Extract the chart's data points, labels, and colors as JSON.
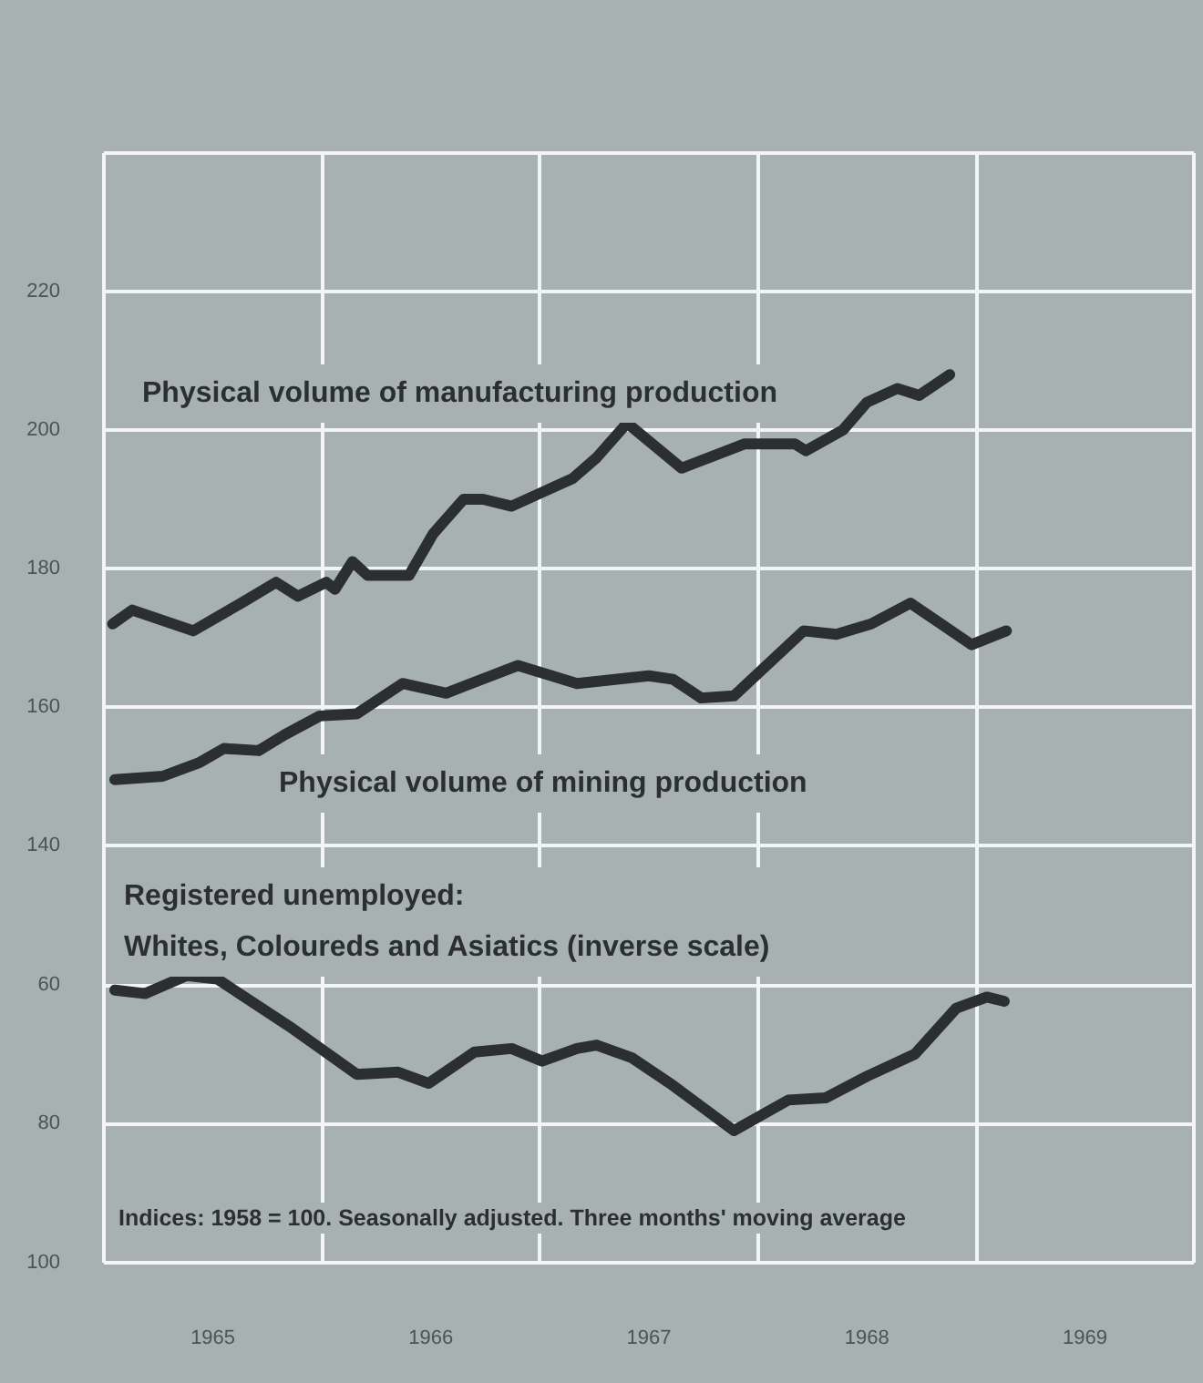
{
  "chart_data": [
    {
      "type": "line",
      "tick_labels": "y",
      "grid": true,
      "line_style": "solid",
      "marker": "none",
      "xlim": [
        1965,
        1970
      ],
      "xticks": [
        {
          "value": 1965,
          "label": null
        },
        {
          "value": 1966,
          "label": null
        },
        {
          "value": 1967,
          "label": null
        },
        {
          "value": 1968,
          "label": null
        },
        {
          "value": 1969,
          "label": null
        },
        {
          "value": 1970,
          "label": null
        }
      ],
      "ylim": [
        140,
        240
      ],
      "yticks": [
        140,
        160,
        180,
        200,
        220,
        {
          "value": 240,
          "label": null
        }
      ],
      "series": [
        {
          "name": "Physical volume of manufacturing production",
          "color": "#2b2f30",
          "x": [
            1965.04,
            1965.13,
            1965.41,
            1965.63,
            1965.79,
            1965.89,
            1966.02,
            1966.06,
            1966.14,
            1966.21,
            1966.4,
            1966.51,
            1966.65,
            1966.74,
            1966.87,
            1967.01,
            1967.15,
            1967.26,
            1967.4,
            1967.65,
            1967.94,
            1968.17,
            1968.22,
            1968.39,
            1968.5,
            1968.64,
            1968.74,
            1968.88
          ],
          "values": [
            172,
            174,
            171,
            175,
            178,
            176,
            178,
            177,
            181,
            179,
            179,
            185,
            190,
            190,
            189,
            191,
            193,
            196,
            201,
            194.5,
            198,
            198,
            197,
            200,
            204,
            206,
            205,
            208
          ]
        },
        {
          "name": "Physical volume of mining production",
          "color": "#2b2f30",
          "x": [
            1965.05,
            1965.27,
            1965.44,
            1965.55,
            1965.71,
            1965.83,
            1965.99,
            1966.16,
            1966.37,
            1966.57,
            1966.9,
            1967.17,
            1967.5,
            1967.61,
            1967.74,
            1967.89,
            1968.21,
            1968.36,
            1968.52,
            1968.7,
            1968.98,
            1969.14
          ],
          "values": [
            149.5,
            150,
            152,
            154,
            153.7,
            156,
            158.7,
            159,
            163.4,
            162,
            166,
            163.4,
            164.5,
            164,
            161.3,
            161.6,
            171,
            170.5,
            172,
            175,
            169,
            171
          ]
        }
      ]
    },
    {
      "type": "line",
      "grid": true,
      "line_style": "solid",
      "marker": "none",
      "xlim": [
        1965,
        1970
      ],
      "xticks": [
        {
          "value": 1965,
          "label": null
        },
        {
          "value": 1965.5,
          "label": "1965"
        },
        {
          "value": 1966,
          "label": null
        },
        {
          "value": 1966.5,
          "label": "1966"
        },
        {
          "value": 1967,
          "label": null
        },
        {
          "value": 1967.5,
          "label": "1967"
        },
        {
          "value": 1968,
          "label": null
        },
        {
          "value": 1968.5,
          "label": "1968"
        },
        {
          "value": 1969,
          "label": null
        },
        {
          "value": 1969.5,
          "label": "1969"
        },
        {
          "value": 1970,
          "label": null
        }
      ],
      "ylim": [
        100,
        40
      ],
      "yticks": [
        {
          "value": 40,
          "label": null
        },
        60,
        80,
        100
      ],
      "annotations": [
        "Indices: 1958 = 100. Seasonally adjusted. Three months' moving average"
      ],
      "series": [
        {
          "name": "Registered unemployed:\nWhites, Coloureds and Asiatics (inverse scale)",
          "color": "#2b2f30",
          "x": [
            1965.05,
            1965.19,
            1965.38,
            1965.52,
            1965.85,
            1966.16,
            1966.35,
            1966.49,
            1966.7,
            1966.87,
            1967.01,
            1967.17,
            1967.26,
            1967.42,
            1967.61,
            1967.89,
            1968.14,
            1968.31,
            1968.5,
            1968.72,
            1968.91,
            1969.05,
            1969.13
          ],
          "values": [
            60.8,
            61.3,
            58.7,
            59.2,
            66,
            72.9,
            72.6,
            74.2,
            69.7,
            69.2,
            71,
            69.2,
            68.7,
            70.5,
            74.5,
            81,
            76.6,
            76.3,
            73.2,
            70,
            63.4,
            61.8,
            62.4
          ]
        }
      ]
    }
  ]
}
